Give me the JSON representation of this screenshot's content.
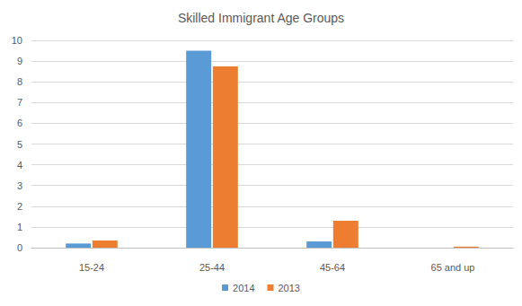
{
  "chart_data": {
    "type": "bar",
    "title": "Skilled Immigrant Age Groups",
    "categories": [
      "15-24",
      "25-44",
      "45-64",
      "65 and up"
    ],
    "series": [
      {
        "name": "2014",
        "color": "#5B9BD5",
        "values": [
          0.2,
          9.5,
          0.3,
          0
        ]
      },
      {
        "name": "2013",
        "color": "#ED7D31",
        "values": [
          0.35,
          8.75,
          1.3,
          0.05
        ]
      }
    ],
    "ylim": [
      0,
      10
    ],
    "yticks": [
      0,
      1,
      2,
      3,
      4,
      5,
      6,
      7,
      8,
      9,
      10
    ],
    "grid": true,
    "legend": "bottom"
  }
}
